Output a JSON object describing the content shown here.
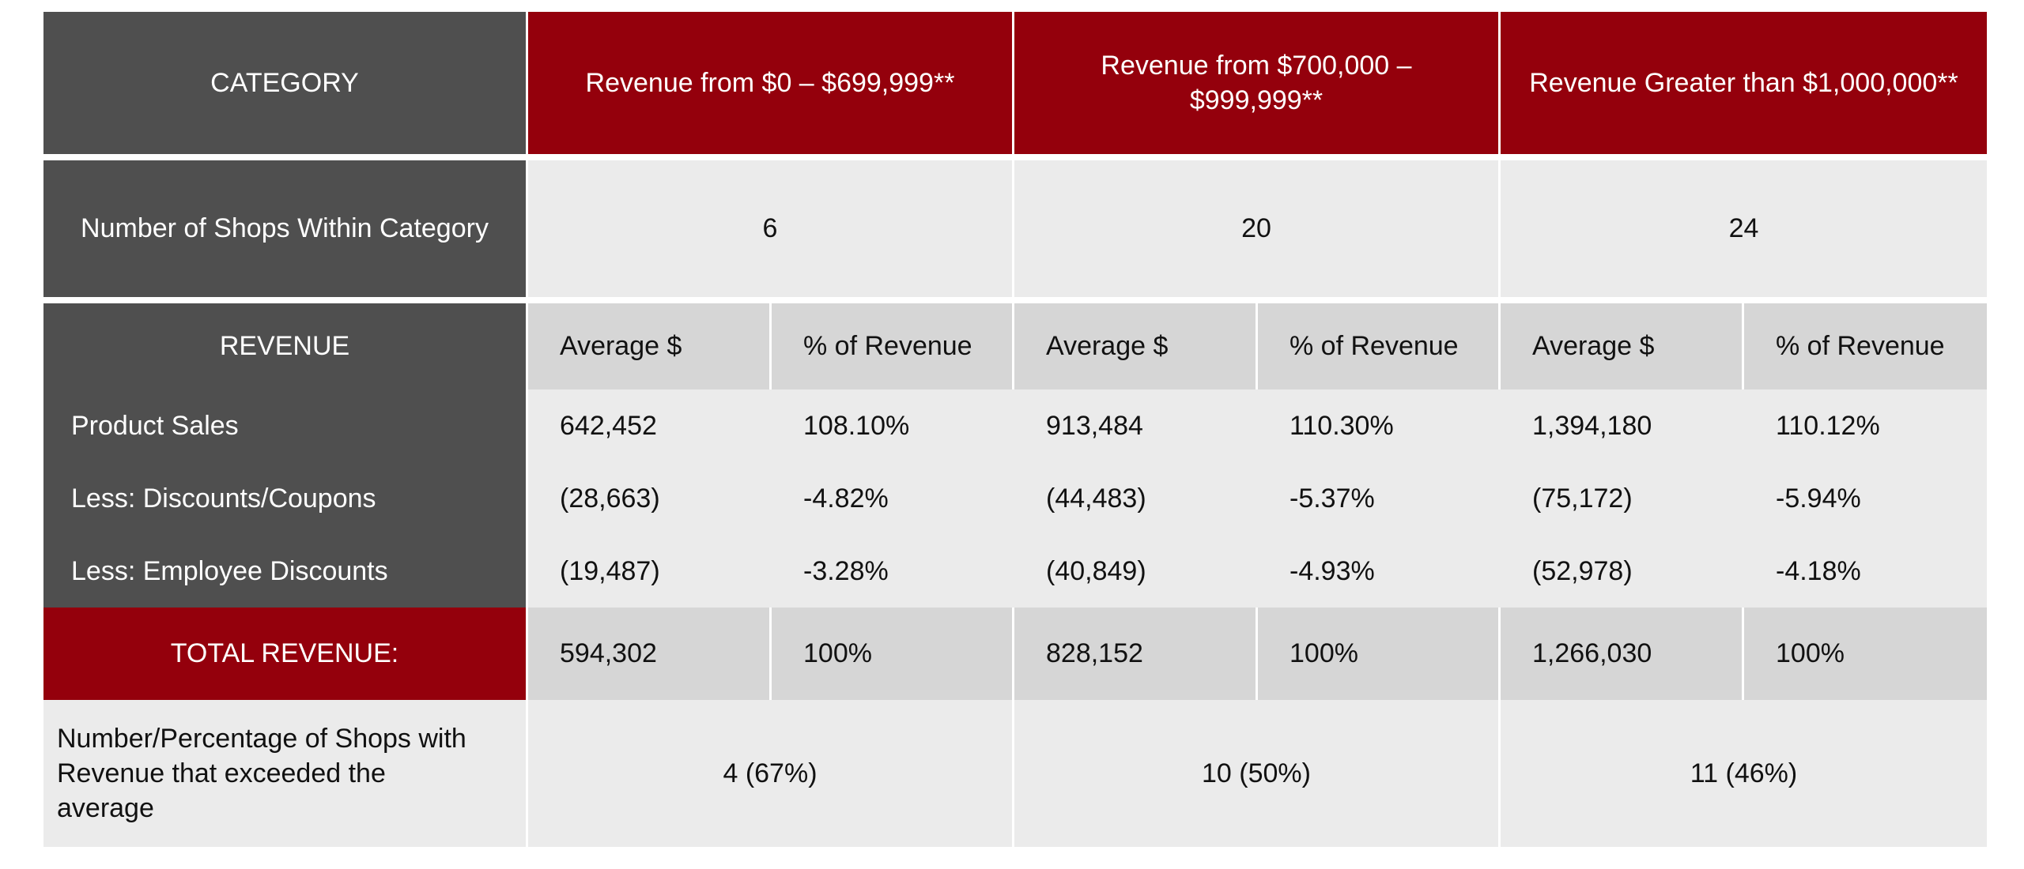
{
  "colors": {
    "dark_header": "#4f4f4f",
    "accent_red": "#94000c",
    "row_light": "#ebebeb",
    "row_mid": "#d6d6d6"
  },
  "header": {
    "category": "CATEGORY",
    "cat1": "Revenue from $0 – $699,999**",
    "cat2": "Revenue from $700,000 – $999,999**",
    "cat3": "Revenue Greater than $1,000,000**"
  },
  "shops": {
    "label": "Number of Shops Within Category",
    "values": [
      "6",
      "20",
      "24"
    ]
  },
  "revenue_header": {
    "label": "REVENUE",
    "avg": "Average $",
    "pct": "% of Revenue"
  },
  "rows": [
    {
      "label": "Product Sales",
      "values": [
        "642,452",
        "108.10%",
        "913,484",
        "110.30%",
        "1,394,180",
        "110.12%"
      ]
    },
    {
      "label": "Less: Discounts/Coupons",
      "values": [
        "(28,663)",
        "-4.82%",
        "(44,483)",
        "-5.37%",
        "(75,172)",
        "-5.94%"
      ]
    },
    {
      "label": "Less: Employee Discounts",
      "values": [
        "(19,487)",
        "-3.28%",
        "(40,849)",
        "-4.93%",
        "(52,978)",
        "-4.18%"
      ]
    }
  ],
  "total": {
    "label": "TOTAL REVENUE:",
    "values": [
      "594,302",
      "100%",
      "828,152",
      "100%",
      "1,266,030",
      "100%"
    ]
  },
  "exceeded": {
    "label": "Number/Percentage of Shops with Revenue that exceeded the average",
    "values": [
      "4 (67%)",
      "10 (50%)",
      "11 (46%)"
    ]
  }
}
